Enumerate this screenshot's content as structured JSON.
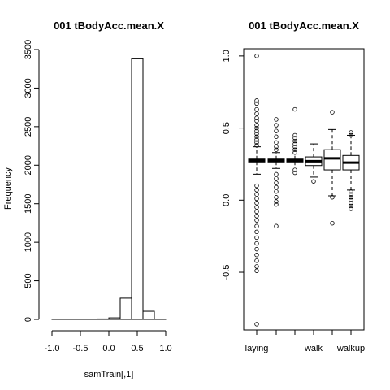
{
  "chart_data": [
    {
      "type": "bar",
      "title": "001 tBodyAcc.mean.X",
      "xlabel": "samTrain[,1]",
      "ylabel": "Frequency",
      "xlim": [
        -1.0,
        1.0
      ],
      "ylim": [
        0,
        3500
      ],
      "xticks": [
        "-1.0",
        "-0.5",
        "0.0",
        "0.5",
        "1.0"
      ],
      "yticks": [
        "0",
        "500",
        "1000",
        "1500",
        "2000",
        "2500",
        "3000",
        "3500"
      ],
      "bins": [
        {
          "x0": -1.0,
          "x1": -0.8,
          "count": 1
        },
        {
          "x0": -0.8,
          "x1": -0.6,
          "count": 1
        },
        {
          "x0": -0.6,
          "x1": -0.4,
          "count": 2
        },
        {
          "x0": -0.4,
          "x1": -0.2,
          "count": 3
        },
        {
          "x0": -0.2,
          "x1": 0.0,
          "count": 6
        },
        {
          "x0": 0.0,
          "x1": 0.2,
          "count": 20
        },
        {
          "x0": 0.2,
          "x1": 0.4,
          "count": 275
        },
        {
          "x0": 0.4,
          "x1": 0.6,
          "count": 3380
        },
        {
          "x0": 0.6,
          "x1": 0.8,
          "count": 105
        },
        {
          "x0": 0.8,
          "x1": 1.0,
          "count": 2
        }
      ]
    },
    {
      "type": "box",
      "title": "001 tBodyAcc.mean.X",
      "ylim": [
        -0.9,
        1.05
      ],
      "yticks": [
        "-0.5",
        "0.0",
        "0.5",
        "1.0"
      ],
      "category_labels": [
        "laying",
        "",
        "",
        "walk",
        "",
        "walkup"
      ],
      "boxes": [
        {
          "min": 0.18,
          "q1": 0.265,
          "median": 0.275,
          "q3": 0.285,
          "max": 0.37,
          "outliers": [
            1.0,
            0.69,
            0.67,
            0.63,
            0.6,
            0.57,
            0.55,
            0.52,
            0.5,
            0.48,
            0.46,
            0.44,
            0.42,
            0.4,
            0.38,
            0.1,
            0.07,
            0.04,
            0.01,
            -0.02,
            -0.05,
            -0.08,
            -0.11,
            -0.14,
            -0.18,
            -0.22,
            -0.26,
            -0.3,
            -0.34,
            -0.38,
            -0.42,
            -0.46,
            -0.49,
            -0.86
          ]
        },
        {
          "min": 0.22,
          "q1": 0.265,
          "median": 0.275,
          "q3": 0.285,
          "max": 0.33,
          "outliers": [
            0.56,
            0.52,
            0.48,
            0.44,
            0.4,
            0.37,
            0.35,
            0.18,
            0.15,
            0.12,
            0.09,
            0.06,
            0.02,
            -0.01,
            -0.03,
            -0.18
          ]
        },
        {
          "min": 0.23,
          "q1": 0.265,
          "median": 0.275,
          "q3": 0.285,
          "max": 0.32,
          "outliers": [
            0.63,
            0.45,
            0.43,
            0.41,
            0.39,
            0.37,
            0.35,
            0.33,
            0.21,
            0.19
          ]
        },
        {
          "min": 0.16,
          "q1": 0.24,
          "median": 0.27,
          "q3": 0.3,
          "max": 0.39,
          "outliers": [
            0.13
          ]
        },
        {
          "min": 0.03,
          "q1": 0.21,
          "median": 0.29,
          "q3": 0.35,
          "max": 0.49,
          "outliers": [
            0.61,
            0.02,
            -0.16
          ]
        },
        {
          "min": 0.07,
          "q1": 0.21,
          "median": 0.26,
          "q3": 0.31,
          "max": 0.45,
          "outliers": [
            0.47,
            0.45,
            0.06,
            0.04,
            0.02,
            0.0,
            -0.02,
            -0.04,
            -0.06
          ]
        }
      ]
    }
  ]
}
